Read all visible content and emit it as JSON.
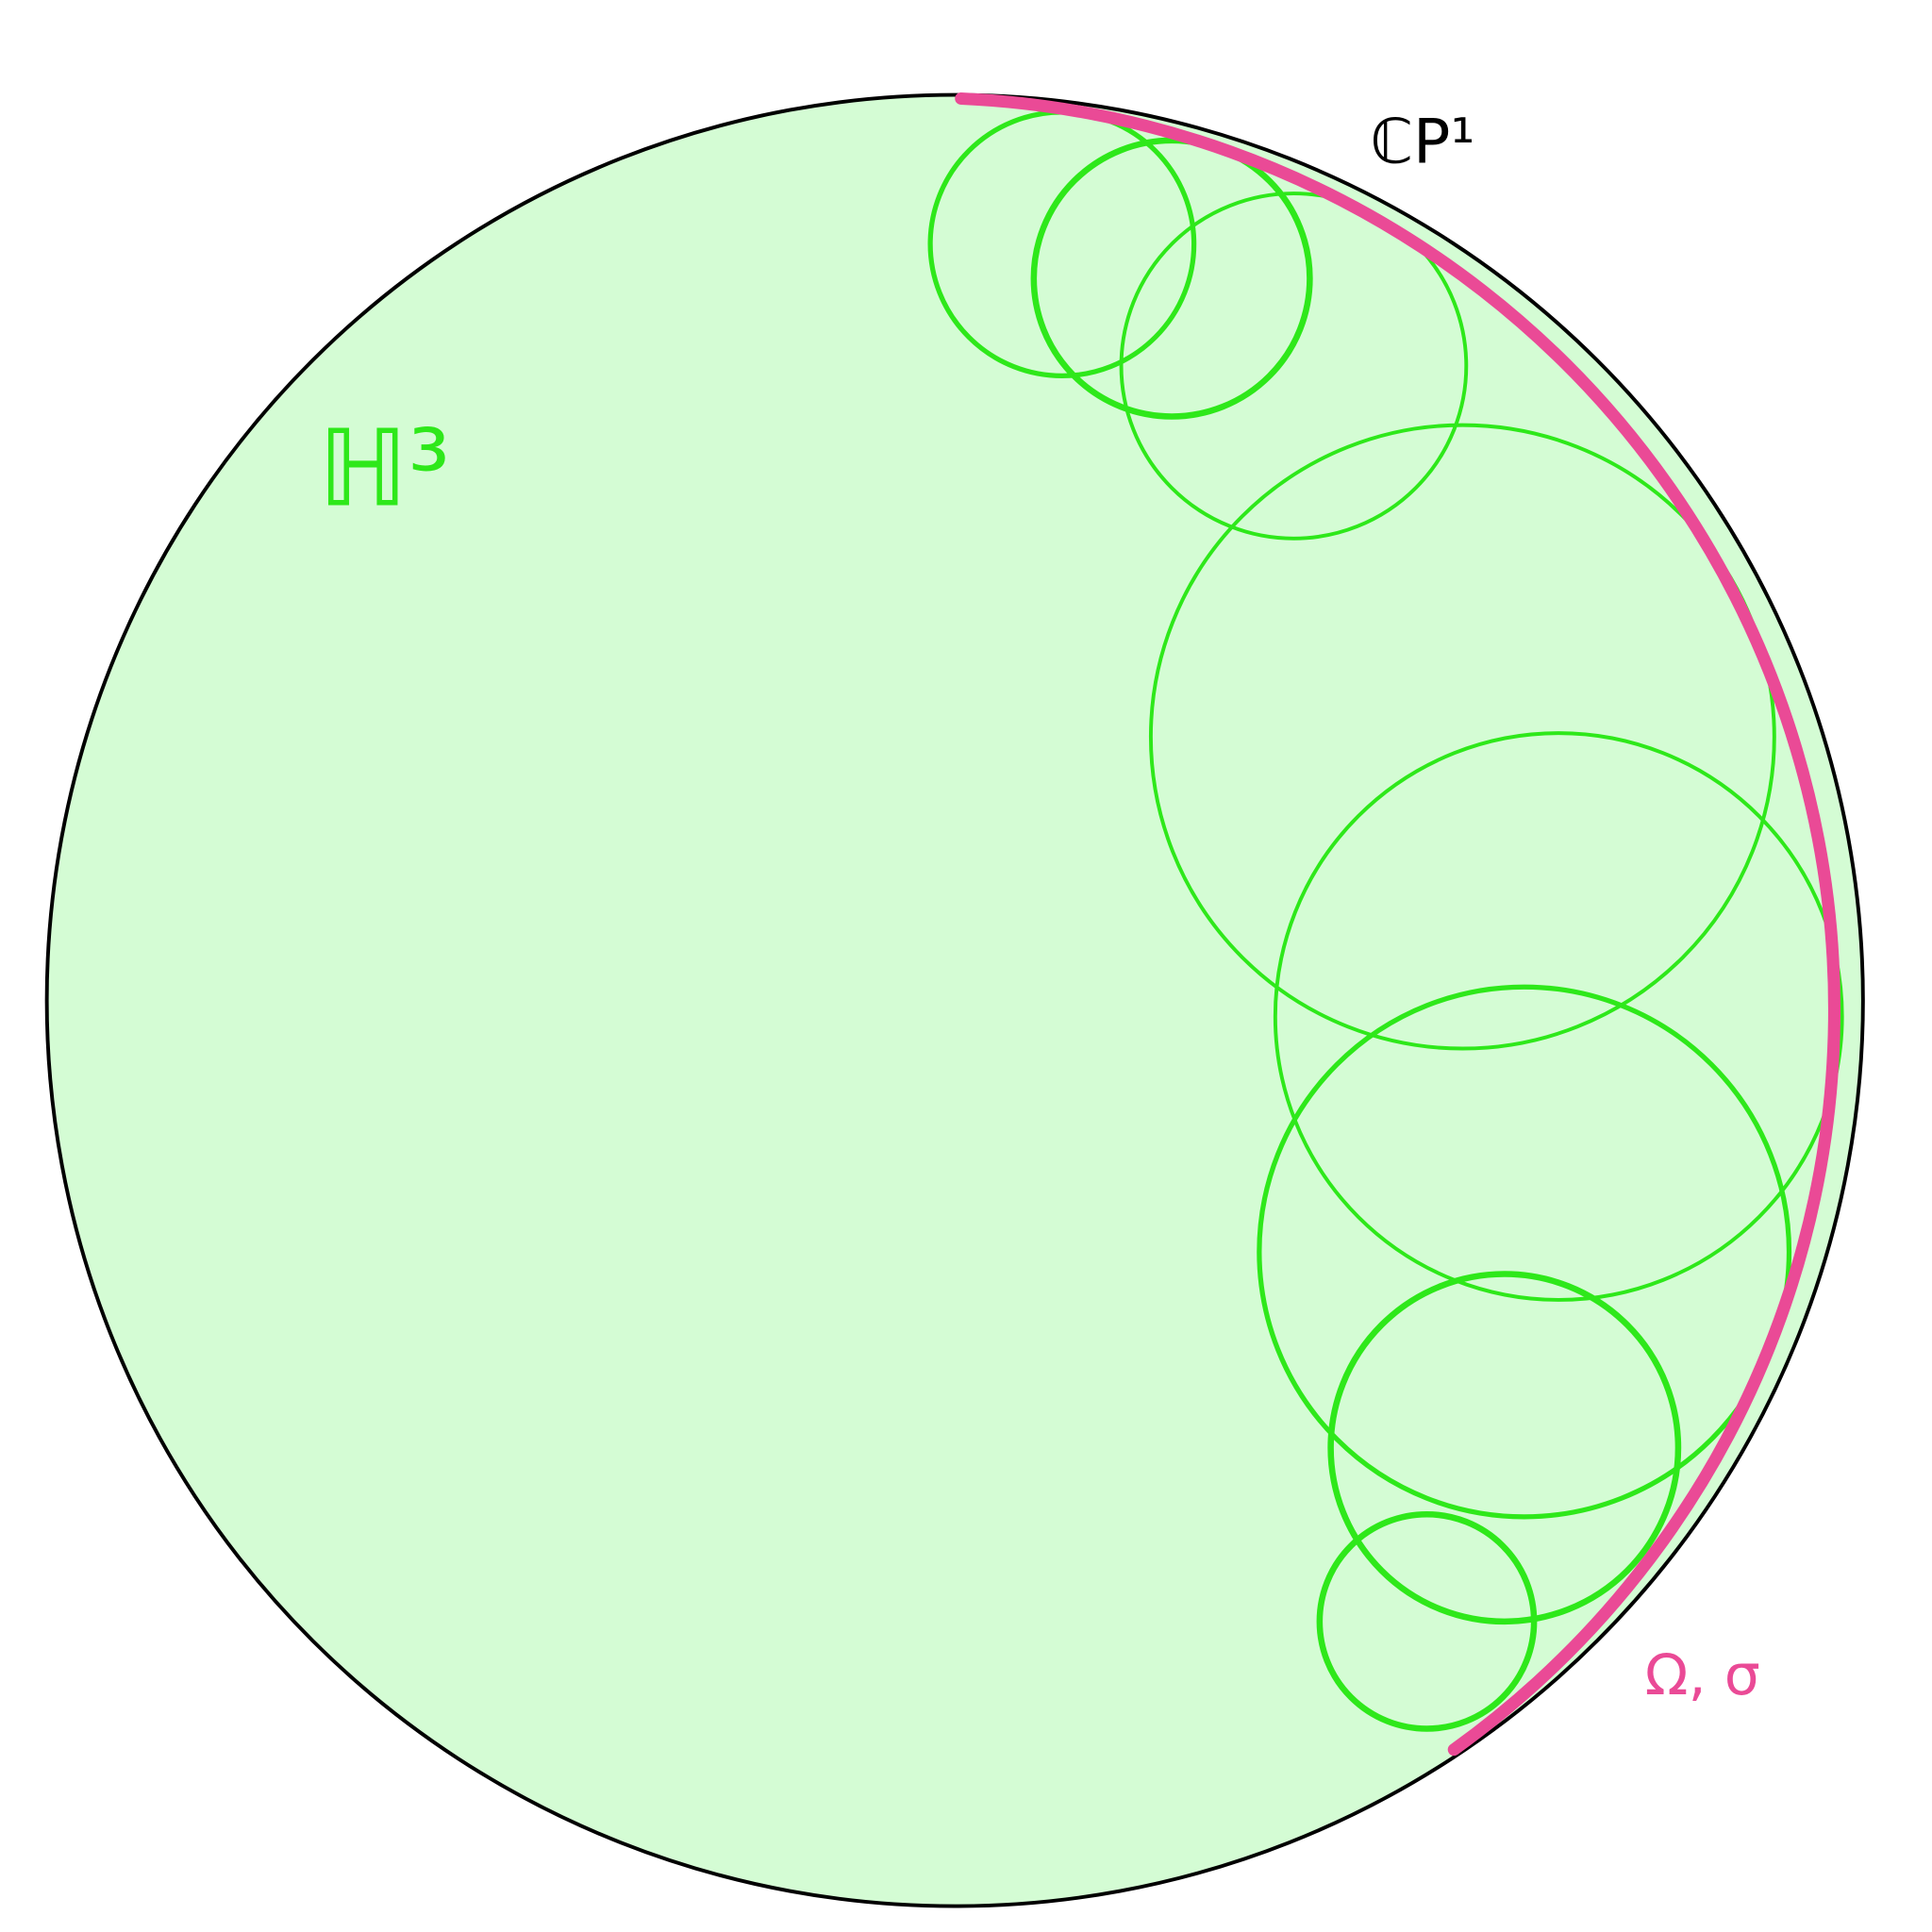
{
  "labels": {
    "hyperbolic_space": "ℍ³",
    "boundary": "ℂP¹",
    "domain": "Ω, σ"
  }
}
